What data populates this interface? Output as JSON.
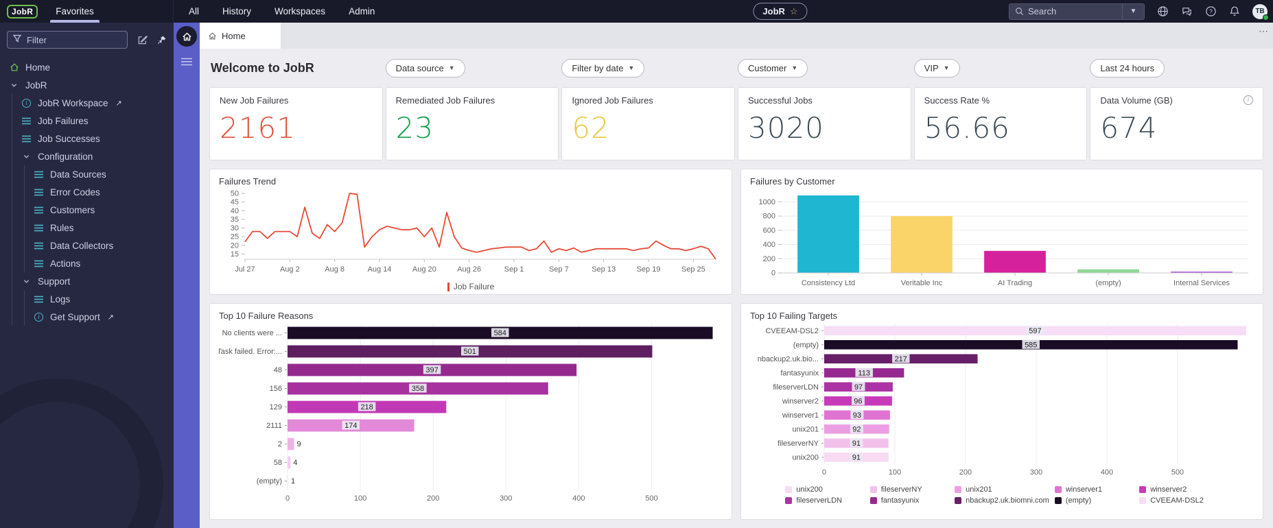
{
  "topbar": {
    "logo": "JobR",
    "favorites": "Favorites",
    "menu": [
      "All",
      "History",
      "Workspaces",
      "Admin"
    ],
    "workspace_pill": "JobR",
    "search_placeholder": "Search",
    "avatar_initials": "TB"
  },
  "sidebar": {
    "filter_placeholder": "Filter",
    "tree": [
      {
        "label": "Home",
        "icon": "home"
      },
      {
        "label": "JobR",
        "icon": "chevron",
        "children": [
          {
            "label": "JobR Workspace",
            "icon": "info",
            "external": true
          },
          {
            "label": "Job Failures",
            "icon": "list"
          },
          {
            "label": "Job Successes",
            "icon": "list"
          },
          {
            "label": "Configuration",
            "icon": "chevron",
            "children": [
              {
                "label": "Data Sources",
                "icon": "list"
              },
              {
                "label": "Error Codes",
                "icon": "list"
              },
              {
                "label": "Customers",
                "icon": "list"
              },
              {
                "label": "Rules",
                "icon": "list"
              },
              {
                "label": "Data Collectors",
                "icon": "list"
              },
              {
                "label": "Actions",
                "icon": "list"
              }
            ]
          },
          {
            "label": "Support",
            "icon": "chevron",
            "children": [
              {
                "label": "Logs",
                "icon": "list"
              },
              {
                "label": "Get Support",
                "icon": "info",
                "external": true
              }
            ]
          }
        ]
      }
    ]
  },
  "tabs": {
    "home": "Home"
  },
  "page": {
    "title": "Welcome to JobR",
    "filters": [
      {
        "label": "Data source",
        "chevron": true
      },
      {
        "label": "Filter by date",
        "chevron": true
      },
      {
        "label": "Customer",
        "chevron": true
      },
      {
        "label": "VIP",
        "chevron": true
      },
      {
        "label": "Last 24 hours",
        "chevron": false
      }
    ]
  },
  "kpis": [
    {
      "label": "New Job Failures",
      "value": "2161",
      "color": "#e2503c",
      "info": false
    },
    {
      "label": "Remediated Job Failures",
      "value": "23",
      "color": "#13a14b",
      "info": false
    },
    {
      "label": "Ignored Job Failures",
      "value": "62",
      "color": "#e9c943",
      "info": false
    },
    {
      "label": "Successful Jobs",
      "value": "3020",
      "color": "#3c4b54",
      "info": false
    },
    {
      "label": "Success Rate %",
      "value": "56.66",
      "color": "#3c4b54",
      "info": false
    },
    {
      "label": "Data Volume (GB)",
      "value": "674",
      "color": "#3c4b54",
      "info": true
    }
  ],
  "chart_data": [
    {
      "type": "line",
      "title": "Failures Trend",
      "series_name": "Job Failure",
      "color": "#e84a35",
      "ylim": [
        12,
        50
      ],
      "yticks": [
        15,
        20,
        25,
        30,
        35,
        40,
        45,
        50
      ],
      "x_tick_labels": [
        "Jul 27",
        "Aug 2",
        "Aug 8",
        "Aug 14",
        "Aug 20",
        "Aug 26",
        "Sep 1",
        "Sep 7",
        "Sep 13",
        "Sep 19",
        "Sep 25"
      ],
      "x_tick_every": 6,
      "values": [
        22,
        28,
        28,
        24,
        28,
        28,
        28,
        25,
        42,
        27,
        24,
        32,
        28,
        33,
        50,
        49.5,
        19,
        25,
        29,
        31,
        30,
        29,
        29,
        30,
        25,
        30,
        19,
        39,
        25,
        18.5,
        17,
        16,
        17,
        18,
        18.5,
        19,
        19,
        19,
        17,
        18,
        22.5,
        16,
        18,
        17,
        18.5,
        16,
        17,
        18,
        18,
        18,
        18,
        18,
        17,
        18,
        18.5,
        22.5,
        20,
        18,
        18,
        17,
        18,
        19.5,
        18,
        12
      ]
    },
    {
      "type": "bar",
      "title": "Failures by Customer",
      "categories": [
        "Consistency Ltd",
        "Veritable Inc",
        "AI Trading",
        "(empty)",
        "Internal Services"
      ],
      "values": [
        1090,
        800,
        310,
        50,
        18
      ],
      "colors": [
        "#1fb6d2",
        "#fbd469",
        "#d6219c",
        "#8fd796",
        "#a44fd0"
      ],
      "yticks": [
        0,
        200,
        400,
        600,
        800,
        1000
      ],
      "ylim": [
        0,
        1100
      ],
      "legend": [
        "Consistency Ltd",
        "Veritable Inc",
        "AI Trading",
        "(empty)",
        "Internal Services"
      ]
    },
    {
      "type": "bar",
      "orientation": "horizontal",
      "title": "Top 10 Failure Reasons",
      "categories": [
        "No clients were ...",
        "Task failed. Error:...",
        "48",
        "156",
        "129",
        "2111",
        "2",
        "58",
        "(empty)"
      ],
      "values": [
        584,
        501,
        397,
        358,
        218,
        174,
        9,
        4,
        1
      ],
      "colors": [
        "#1b0c25",
        "#5e1f60",
        "#93298d",
        "#a7319e",
        "#c13ab5",
        "#e28ad8",
        "#eeb2e5",
        "#f4cdee",
        "#f9e3f6"
      ],
      "xticks": [
        0,
        100,
        200,
        300,
        400,
        500
      ],
      "xlim": [
        0,
        592
      ]
    },
    {
      "type": "bar",
      "orientation": "horizontal",
      "title": "Top 10 Failing Targets",
      "categories": [
        "CVEEAM-DSL2",
        "(empty)",
        "nbackup2.uk.bio...",
        "fantasyunix",
        "fileserverLDN",
        "winserver2",
        "winserver1",
        "unix201",
        "fileserverNY",
        "unix200"
      ],
      "values": [
        597,
        585,
        217,
        113,
        97,
        96,
        93,
        92,
        91,
        91
      ],
      "colors": [
        "#f6def6",
        "#1b0c25",
        "#671f68",
        "#96298f",
        "#ac33a3",
        "#c73bb9",
        "#df74d2",
        "#eb9fe2",
        "#f2c1eb",
        "#f8daf3"
      ],
      "xticks": [
        0,
        100,
        200,
        300,
        400,
        500
      ],
      "xlim": [
        0,
        602
      ],
      "legend_order": [
        "unix200",
        "fileserverNY",
        "unix201",
        "winserver1",
        "winserver2",
        "fileserverLDN",
        "fantasyunix",
        "nbackup2.uk.biomni.com",
        "(empty)",
        "CVEEAM-DSL2"
      ],
      "legend_colors": [
        "#f8daf3",
        "#f2c1eb",
        "#eb9fe2",
        "#df74d2",
        "#c73bb9",
        "#ac33a3",
        "#96298f",
        "#671f68",
        "#1b0c25",
        "#f6def6"
      ]
    }
  ]
}
